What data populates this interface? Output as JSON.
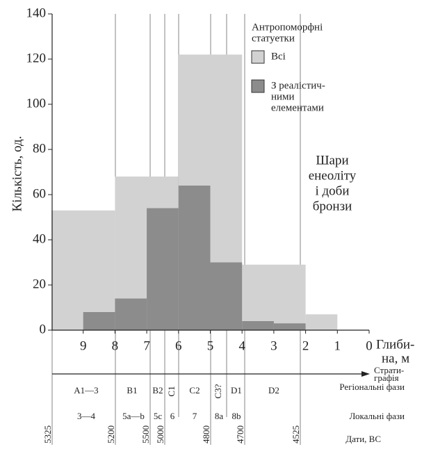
{
  "chart_data": {
    "type": "histogram",
    "ylabel": "Кількість, од.",
    "xlabel": [
      "Глиби-",
      "на, м"
    ],
    "xlim": [
      10,
      0
    ],
    "xticks": [
      9,
      8,
      7,
      6,
      5,
      4,
      3,
      2,
      1,
      0
    ],
    "ylim": [
      0,
      140
    ],
    "yticks": [
      0,
      20,
      40,
      60,
      80,
      100,
      120,
      140
    ],
    "legend_title": [
      "Антропоморфні",
      "статуетки"
    ],
    "series": [
      {
        "name": [
          "Всі"
        ],
        "color": "#d2d2d2",
        "bins": [
          10,
          8,
          6,
          4,
          2,
          1
        ],
        "values": [
          53,
          68,
          122,
          29,
          7
        ]
      },
      {
        "name": [
          "З реалістич-",
          "ними",
          "елементами"
        ],
        "color": "#8c8c8c",
        "bins": [
          9,
          8,
          7,
          6,
          5,
          4,
          3,
          2
        ],
        "values": [
          8,
          14,
          54,
          64,
          30,
          4,
          3
        ]
      }
    ],
    "annotation": [
      "Шари",
      "енеоліту",
      "і доби",
      "бронзи"
    ],
    "strat_label": [
      "Страти-",
      "графія"
    ],
    "regional": {
      "label": "Регіональні фази",
      "items": [
        "A1—3",
        "B1",
        "B2",
        "C1",
        "C2",
        "C3?",
        "D1",
        "D2"
      ]
    },
    "local": {
      "label": "Локальні фази",
      "items": [
        "3—4",
        "5a—b",
        "5c",
        "6",
        "7",
        "8a",
        "8b"
      ]
    },
    "dates": {
      "label": "Дати, ВС",
      "items": [
        "5325",
        "5200",
        "5500",
        "5000",
        "4800",
        "4700",
        "4525"
      ]
    }
  }
}
